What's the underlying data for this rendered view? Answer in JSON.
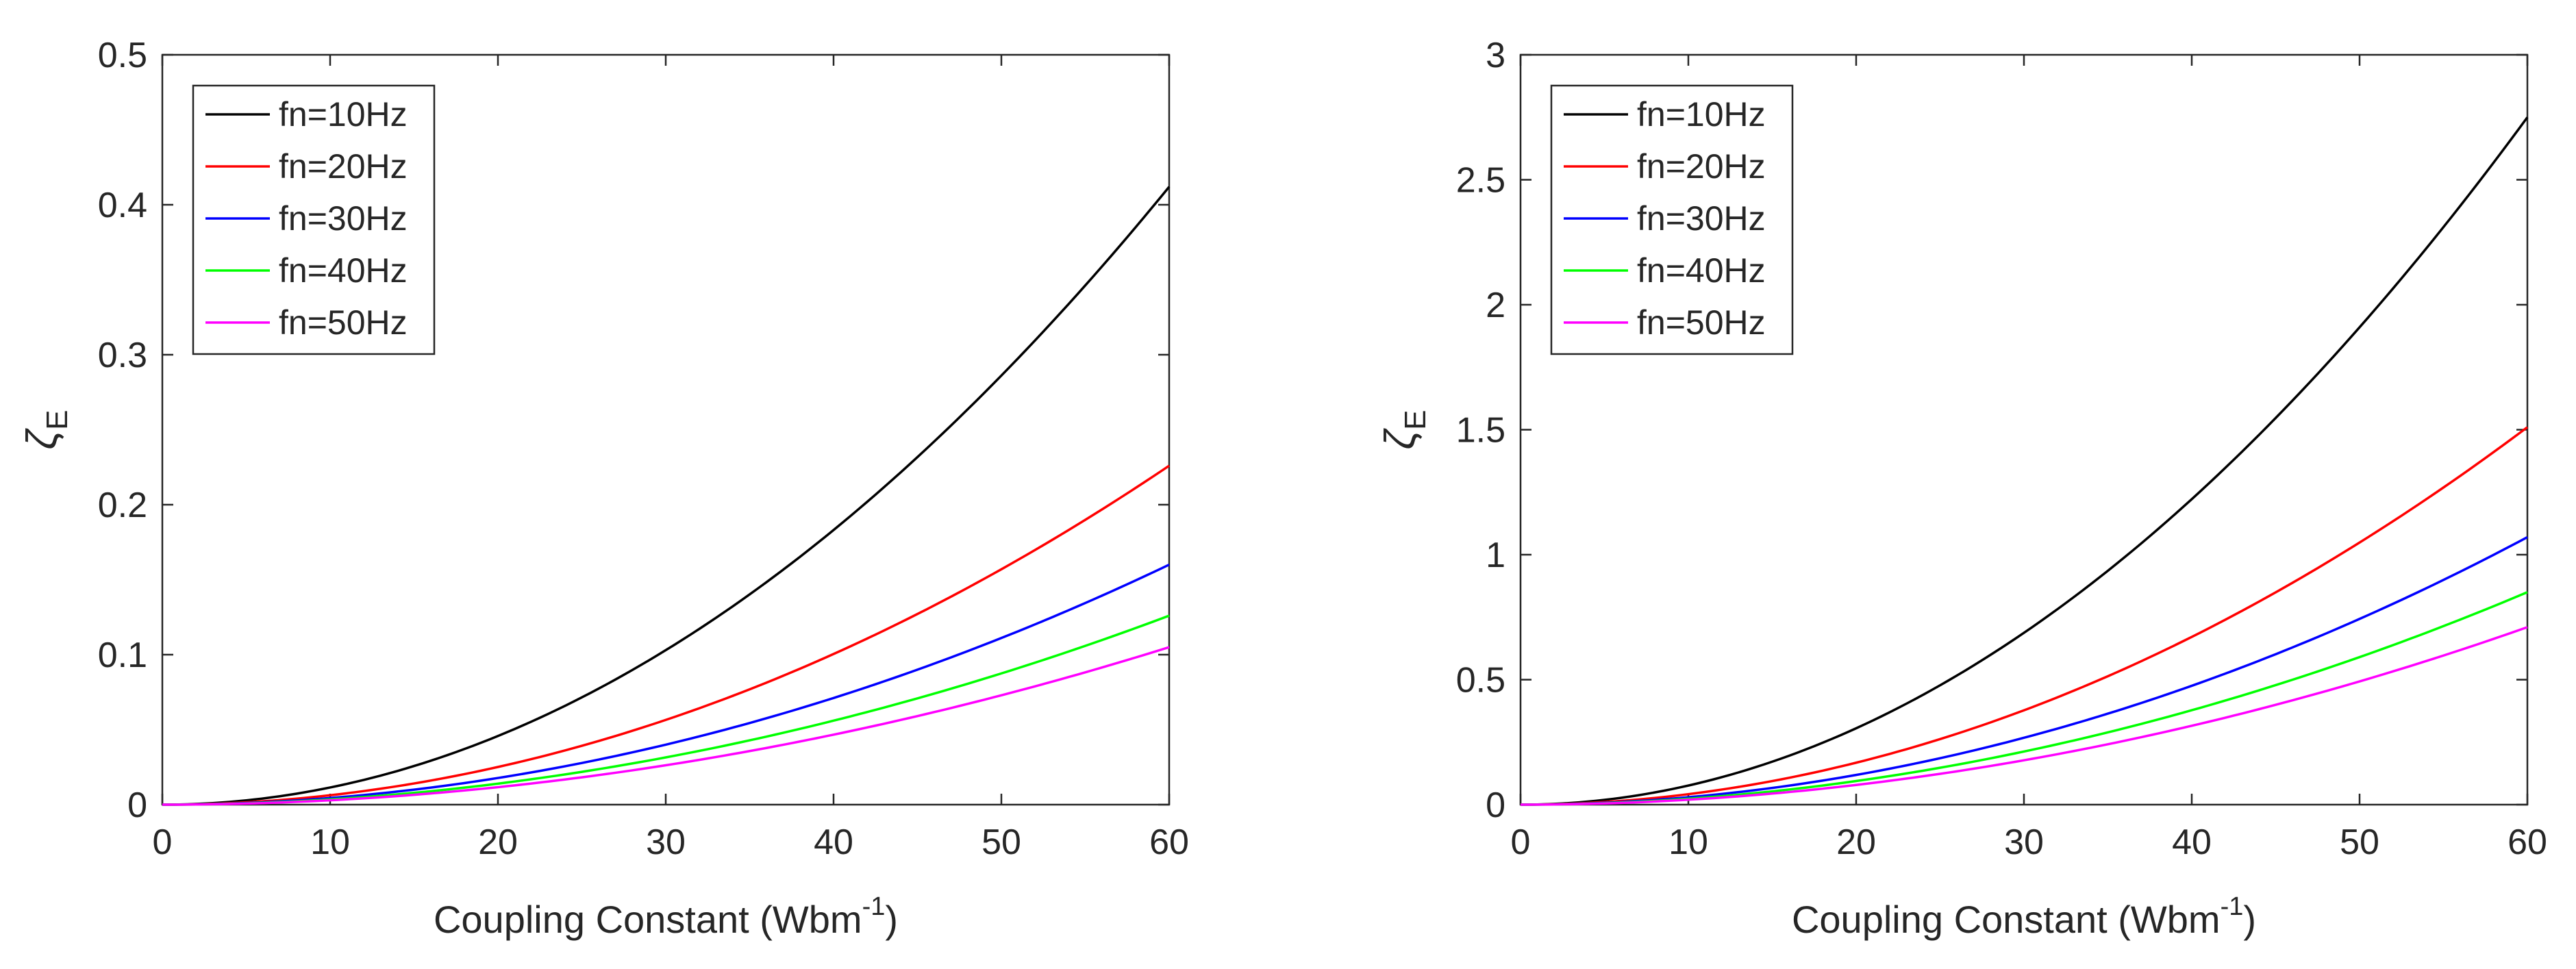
{
  "chart_data": [
    {
      "type": "line",
      "title": "",
      "xlabel": "Coupling Constant (Wbm",
      "xlabel_superscript": "-1",
      "xlabel_suffix": ")",
      "ylabel": "ζ",
      "ylabel_subscript": "E",
      "xlim": [
        0,
        60
      ],
      "ylim": [
        0,
        0.5
      ],
      "xticks": [
        0,
        10,
        20,
        30,
        40,
        50,
        60
      ],
      "yticks": [
        0,
        0.1,
        0.2,
        0.3,
        0.4,
        0.5
      ],
      "xtick_labels": [
        "0",
        "10",
        "20",
        "30",
        "40",
        "50",
        "60"
      ],
      "ytick_labels": [
        "0",
        "0.1",
        "0.2",
        "0.3",
        "0.4",
        "0.5"
      ],
      "legend_position": "top-left",
      "grid": false,
      "curve_form": "y = k * x^2",
      "series": [
        {
          "name": "fn=10Hz",
          "color": "#000000",
          "x": [
            0,
            10,
            20,
            30,
            40,
            50,
            60
          ],
          "values": [
            0,
            0.0114,
            0.0458,
            0.103,
            0.183,
            0.286,
            0.412
          ]
        },
        {
          "name": "fn=20Hz",
          "color": "#ff0000",
          "x": [
            0,
            10,
            20,
            30,
            40,
            50,
            60
          ],
          "values": [
            0,
            0.0063,
            0.0251,
            0.0565,
            0.1004,
            0.1569,
            0.226
          ]
        },
        {
          "name": "fn=30Hz",
          "color": "#0000ff",
          "x": [
            0,
            10,
            20,
            30,
            40,
            50,
            60
          ],
          "values": [
            0,
            0.0044,
            0.0178,
            0.04,
            0.0711,
            0.1111,
            0.16
          ]
        },
        {
          "name": "fn=40Hz",
          "color": "#00ff00",
          "x": [
            0,
            10,
            20,
            30,
            40,
            50,
            60
          ],
          "values": [
            0,
            0.0035,
            0.014,
            0.0315,
            0.056,
            0.0875,
            0.126
          ]
        },
        {
          "name": "fn=50Hz",
          "color": "#ff00ff",
          "x": [
            0,
            10,
            20,
            30,
            40,
            50,
            60
          ],
          "values": [
            0,
            0.0029,
            0.0117,
            0.0263,
            0.0467,
            0.0729,
            0.105
          ]
        }
      ]
    },
    {
      "type": "line",
      "title": "",
      "xlabel": "Coupling Constant (Wbm",
      "xlabel_superscript": "-1",
      "xlabel_suffix": ")",
      "ylabel": "ζ",
      "ylabel_subscript": "E",
      "xlim": [
        0,
        60
      ],
      "ylim": [
        0,
        3
      ],
      "xticks": [
        0,
        10,
        20,
        30,
        40,
        50,
        60
      ],
      "yticks": [
        0,
        0.5,
        1,
        1.5,
        2,
        2.5,
        3
      ],
      "xtick_labels": [
        "0",
        "10",
        "20",
        "30",
        "40",
        "50",
        "60"
      ],
      "ytick_labels": [
        "0",
        "0.5",
        "1",
        "1.5",
        "2",
        "2.5",
        "3"
      ],
      "legend_position": "top-left",
      "grid": false,
      "curve_form": "y = k * x^2",
      "series": [
        {
          "name": "fn=10Hz",
          "color": "#000000",
          "x": [
            0,
            10,
            20,
            30,
            40,
            50,
            60
          ],
          "values": [
            0,
            0.0764,
            0.3056,
            0.6875,
            1.2222,
            1.9097,
            2.75
          ]
        },
        {
          "name": "fn=20Hz",
          "color": "#ff0000",
          "x": [
            0,
            10,
            20,
            30,
            40,
            50,
            60
          ],
          "values": [
            0,
            0.0419,
            0.1678,
            0.3775,
            0.6711,
            1.0486,
            1.51
          ]
        },
        {
          "name": "fn=30Hz",
          "color": "#0000ff",
          "x": [
            0,
            10,
            20,
            30,
            40,
            50,
            60
          ],
          "values": [
            0,
            0.0297,
            0.1189,
            0.2675,
            0.4756,
            0.7431,
            1.07
          ]
        },
        {
          "name": "fn=40Hz",
          "color": "#00ff00",
          "x": [
            0,
            10,
            20,
            30,
            40,
            50,
            60
          ],
          "values": [
            0,
            0.0236,
            0.0944,
            0.2125,
            0.3778,
            0.5903,
            0.85
          ]
        },
        {
          "name": "fn=50Hz",
          "color": "#ff00ff",
          "x": [
            0,
            10,
            20,
            30,
            40,
            50,
            60
          ],
          "values": [
            0,
            0.0197,
            0.0789,
            0.1775,
            0.3156,
            0.4931,
            0.71
          ]
        }
      ]
    }
  ]
}
